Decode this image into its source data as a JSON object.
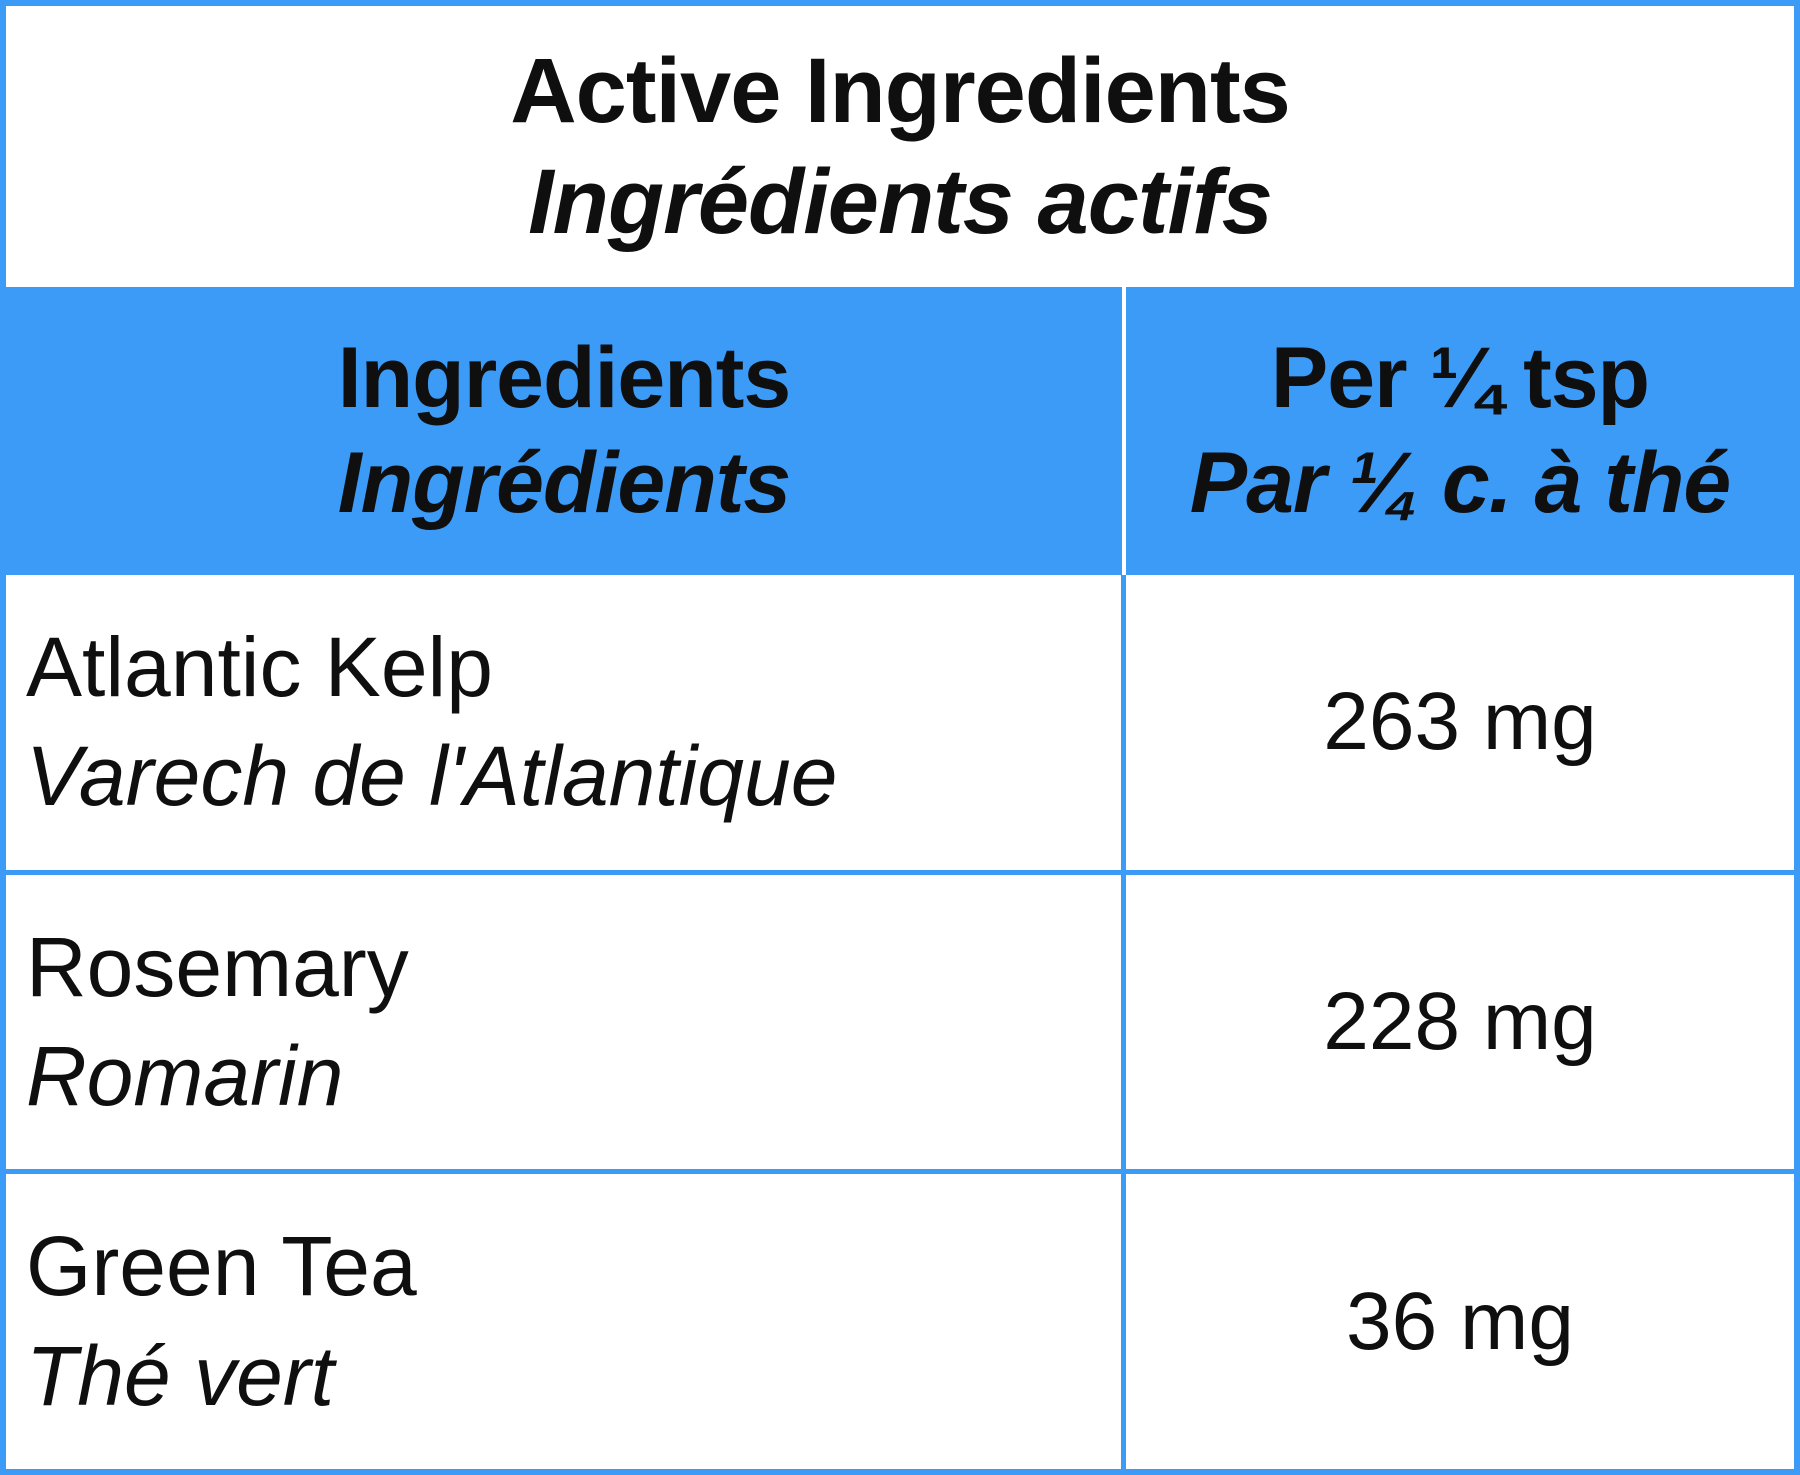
{
  "colors": {
    "accent_blue": "#3B9BF7",
    "text": "#0f0f10",
    "background": "#ffffff"
  },
  "title": {
    "en": "Active Ingredients",
    "fr": "Ingrédients actifs"
  },
  "table": {
    "header": {
      "ingredients_en": "Ingredients",
      "ingredients_fr": "Ingrédients",
      "amount_en": "Per ¼ tsp",
      "amount_fr": "Par ¼ c. à thé"
    },
    "rows": [
      {
        "name_en": "Atlantic Kelp",
        "name_fr": "Varech de l'Atlantique",
        "amount": "263 mg"
      },
      {
        "name_en": "Rosemary",
        "name_fr": "Romarin",
        "amount": "228 mg"
      },
      {
        "name_en": "Green Tea",
        "name_fr": "Thé vert",
        "amount": "36 mg"
      }
    ]
  }
}
